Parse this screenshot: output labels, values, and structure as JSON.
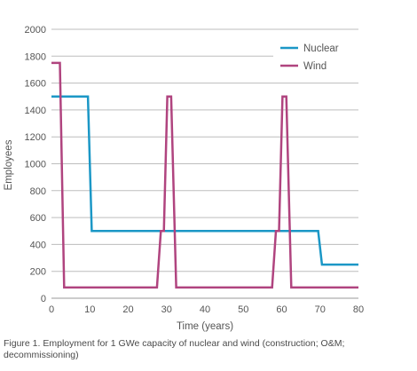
{
  "chart_data": {
    "type": "line",
    "xlabel": "Time (years)",
    "ylabel": "Employees",
    "xlim": [
      0,
      80
    ],
    "ylim": [
      0,
      2000
    ],
    "x_ticks": [
      0,
      10,
      20,
      30,
      40,
      50,
      60,
      70,
      80
    ],
    "y_ticks": [
      0,
      200,
      400,
      600,
      800,
      1000,
      1200,
      1400,
      1600,
      1800,
      2000
    ],
    "grid": "horizontal",
    "legend_position": "top-right",
    "series": [
      {
        "name": "Nuclear",
        "color": "#1b97c6",
        "points": [
          [
            0,
            1500
          ],
          [
            9.5,
            1500
          ],
          [
            10.5,
            500
          ],
          [
            69.5,
            500
          ],
          [
            70.5,
            250
          ],
          [
            80,
            250
          ]
        ]
      },
      {
        "name": "Wind",
        "color": "#b0447f",
        "points": [
          [
            0,
            1750
          ],
          [
            2.2,
            1750
          ],
          [
            3.3,
            80
          ],
          [
            27.5,
            80
          ],
          [
            28.5,
            500
          ],
          [
            29.3,
            500
          ],
          [
            30.2,
            1500
          ],
          [
            31.2,
            1500
          ],
          [
            32.5,
            80
          ],
          [
            57.5,
            80
          ],
          [
            58.5,
            500
          ],
          [
            59.3,
            500
          ],
          [
            60.2,
            1500
          ],
          [
            61.2,
            1500
          ],
          [
            62.5,
            80
          ],
          [
            80,
            80
          ]
        ]
      }
    ]
  },
  "caption": "Figure 1. Employment for 1 GWe capacity of nuclear and wind (construction; O&M; decommissioning)"
}
